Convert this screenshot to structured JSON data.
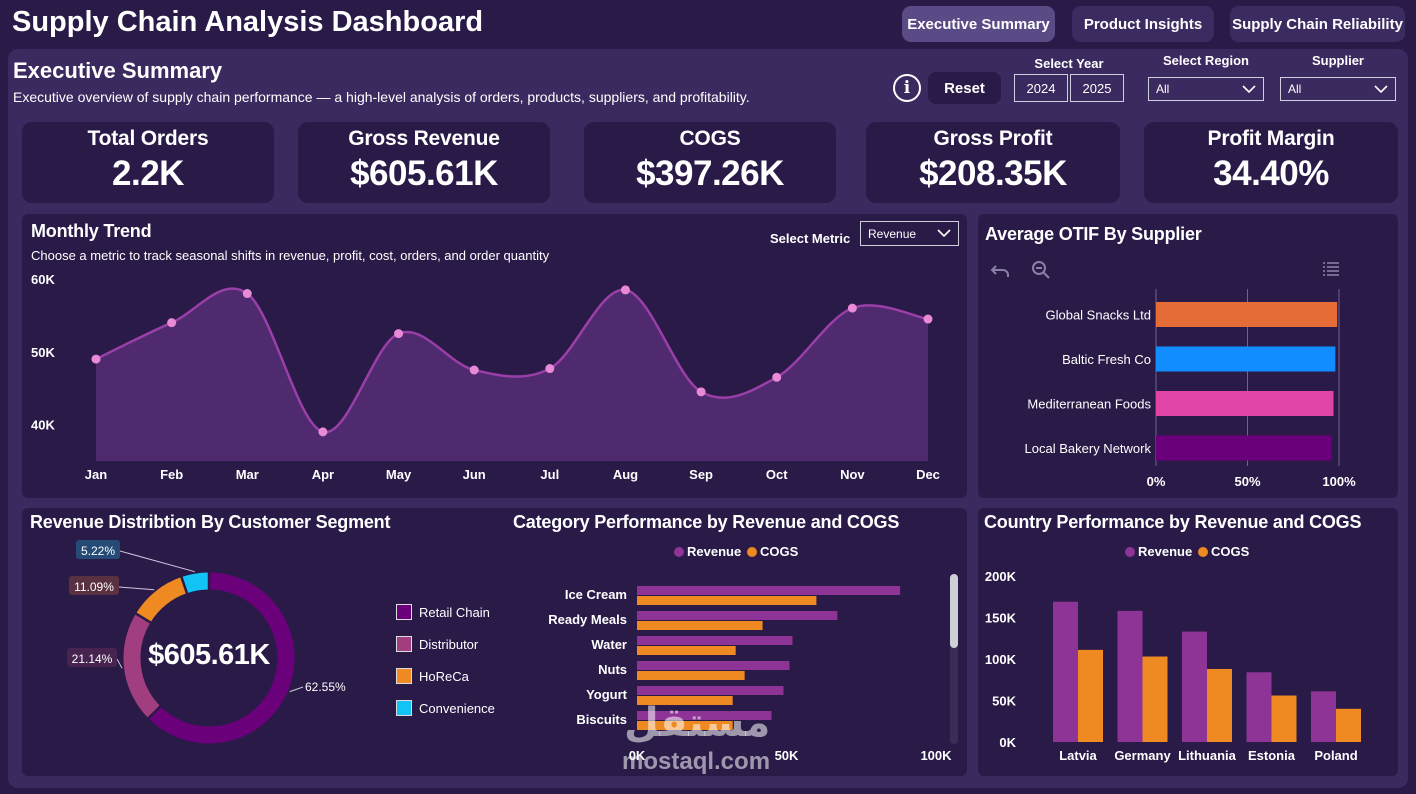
{
  "header": {
    "title": "Supply Chain Analysis Dashboard",
    "tabs": [
      {
        "label": "Executive Summary",
        "active": true
      },
      {
        "label": "Product Insights",
        "active": false
      },
      {
        "label": "Supply Chain Reliability",
        "active": false
      }
    ]
  },
  "section": {
    "title": "Executive Summary",
    "subtitle": "Executive overview of supply chain performance — a high-level analysis of orders, products, suppliers, and profitability."
  },
  "controls": {
    "info_icon": "i",
    "reset_label": "Reset",
    "year_label": "Select Year",
    "years": [
      "2024",
      "2025"
    ],
    "region_label": "Select Region",
    "region_value": "All",
    "supplier_label": "Supplier",
    "supplier_value": "All"
  },
  "kpis": [
    {
      "label": "Total Orders",
      "value": "2.2K"
    },
    {
      "label": "Gross Revenue",
      "value": "$605.61K"
    },
    {
      "label": "COGS",
      "value": "$397.26K"
    },
    {
      "label": "Gross Profit",
      "value": "$208.35K"
    },
    {
      "label": "Profit Margin",
      "value": "34.40%"
    }
  ],
  "monthly": {
    "title": "Monthly Trend",
    "subtitle": "Choose a metric to track seasonal shifts in revenue, profit, cost, orders, and order quantity",
    "metric_label": "Select Metric",
    "metric_value": "Revenue"
  },
  "otif": {
    "title": "Average OTIF By Supplier"
  },
  "segment": {
    "title": "Revenue Distribtion By Customer Segment",
    "center_value": "$605.61K"
  },
  "category": {
    "title": "Category Performance by Revenue and COGS"
  },
  "country": {
    "title": "Country Performance by Revenue and COGS"
  },
  "watermark": {
    "arabic": "مستقل",
    "latin": "mostaql.com"
  },
  "colors": {
    "background": "#2a1a48",
    "panel": "#3b2a5f",
    "revenue": "#8e3497",
    "cogs": "#ef8a23",
    "line": "#9a3fa7",
    "point": "#e88ad6"
  },
  "chart_data": [
    {
      "id": "monthly",
      "type": "area",
      "x": [
        "Jan",
        "Feb",
        "Mar",
        "Apr",
        "May",
        "Jun",
        "Jul",
        "Aug",
        "Sep",
        "Oct",
        "Nov",
        "Dec"
      ],
      "values": [
        49000,
        54000,
        58000,
        39000,
        52500,
        47500,
        47700,
        58500,
        44500,
        46500,
        56000,
        54500
      ],
      "ylim": [
        35000,
        60000
      ],
      "yticks": [
        40000,
        50000,
        60000
      ],
      "ytick_labels": [
        "40K",
        "50K",
        "60K"
      ],
      "grid": false
    },
    {
      "id": "otif",
      "type": "bar",
      "orientation": "horizontal",
      "categories": [
        "Global Snacks Ltd",
        "Baltic Fresh Co",
        "Mediterranean Foods",
        "Local Bakery Network"
      ],
      "values": [
        99,
        98,
        97,
        96
      ],
      "colors": [
        "#e66c37",
        "#118dff",
        "#e044a7",
        "#6b007b"
      ],
      "xlim": [
        0,
        100
      ],
      "xticks": [
        0,
        50,
        100
      ],
      "xtick_labels": [
        "0%",
        "50%",
        "100%"
      ]
    },
    {
      "id": "segment",
      "type": "pie",
      "donut": true,
      "categories": [
        "Retail Chain",
        "Distributor",
        "HoReCa",
        "Convenience"
      ],
      "values": [
        62.55,
        21.14,
        11.09,
        5.22
      ],
      "labels": [
        "62.55%",
        "21.14%",
        "11.09%",
        "5.22%"
      ],
      "colors": [
        "#6b007b",
        "#a03e7f",
        "#ef8a23",
        "#12c4f5"
      ],
      "legend": "right"
    },
    {
      "id": "category",
      "type": "bar",
      "orientation": "horizontal",
      "categories": [
        "Ice Cream",
        "Ready Meals",
        "Water",
        "Nuts",
        "Yogurt",
        "Biscuits"
      ],
      "series": [
        {
          "name": "Revenue",
          "values": [
            88000,
            67000,
            52000,
            51000,
            49000,
            45000
          ]
        },
        {
          "name": "COGS",
          "values": [
            60000,
            42000,
            33000,
            36000,
            32000,
            32000
          ]
        }
      ],
      "xlim": [
        0,
        100000
      ],
      "xticks": [
        0,
        50000,
        100000
      ],
      "xtick_labels": [
        "0K",
        "50K",
        "100K"
      ],
      "legend": "top"
    },
    {
      "id": "country",
      "type": "bar",
      "categories": [
        "Latvia",
        "Germany",
        "Lithuania",
        "Estonia",
        "Poland"
      ],
      "series": [
        {
          "name": "Revenue",
          "values": [
            169000,
            158000,
            133000,
            84000,
            61000
          ]
        },
        {
          "name": "COGS",
          "values": [
            111000,
            103000,
            88000,
            56000,
            40000
          ]
        }
      ],
      "ylim": [
        0,
        200000
      ],
      "yticks": [
        0,
        50000,
        100000,
        150000,
        200000
      ],
      "ytick_labels": [
        "0K",
        "50K",
        "100K",
        "150K",
        "200K"
      ],
      "legend": "top"
    }
  ]
}
